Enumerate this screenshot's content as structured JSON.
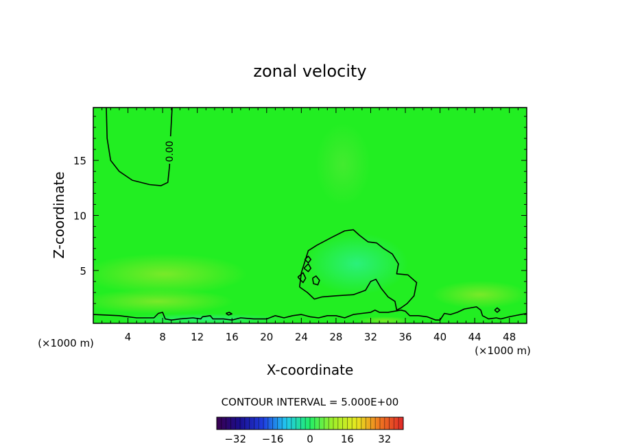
{
  "chart_data": {
    "type": "contour",
    "title": "zonal velocity",
    "xlabel": "X-coordinate",
    "ylabel": "Z-coordinate",
    "x_unit_left": "(×1000 m)",
    "x_unit_right": "(×1000 m)",
    "xlim": [
      0,
      50
    ],
    "ylim": [
      0.2,
      19.8
    ],
    "x_ticks": [
      4,
      8,
      12,
      16,
      20,
      24,
      28,
      32,
      36,
      40,
      44,
      48
    ],
    "y_ticks": [
      5,
      10,
      15
    ],
    "contour_label": "0.00",
    "contour_interval_text": "CONTOUR INTERVAL = 5.000E+00",
    "colorbar": {
      "range": [
        -40,
        40
      ],
      "ticks": [
        -32,
        -16,
        0,
        16,
        32
      ],
      "tick_labels": [
        "−32",
        "−16",
        "0",
        "16",
        "32"
      ]
    },
    "field_color": "#22ee22",
    "contours": [
      {
        "level": 0,
        "points": [
          [
            1.5,
            19.8
          ],
          [
            1.6,
            17
          ],
          [
            2,
            15
          ],
          [
            3,
            14
          ],
          [
            4.5,
            13.2
          ],
          [
            6.5,
            12.8
          ],
          [
            7.8,
            12.7
          ],
          [
            8.6,
            13
          ],
          [
            8.8,
            14.5
          ],
          [
            8.9,
            17
          ],
          [
            9.1,
            19.8
          ]
        ]
      },
      {
        "level": 0,
        "points": [
          [
            23.8,
            3.5
          ],
          [
            24,
            4.8
          ],
          [
            24.8,
            6.8
          ],
          [
            25.8,
            7.3
          ],
          [
            27.5,
            8
          ],
          [
            29,
            8.6
          ],
          [
            30,
            8.7
          ],
          [
            30.7,
            8.2
          ],
          [
            31.7,
            7.6
          ],
          [
            32.7,
            7.5
          ],
          [
            33.5,
            7
          ],
          [
            34.5,
            6.5
          ],
          [
            35.2,
            5.6
          ],
          [
            35,
            4.7
          ],
          [
            36.3,
            4.6
          ],
          [
            37.3,
            3.9
          ],
          [
            37,
            2.7
          ],
          [
            36.2,
            2
          ],
          [
            35.5,
            1.6
          ],
          [
            35,
            1.4
          ],
          [
            34.8,
            2.2
          ],
          [
            34,
            2.6
          ],
          [
            33.2,
            3.4
          ],
          [
            32.6,
            4.2
          ],
          [
            32,
            4
          ],
          [
            31.4,
            3.2
          ],
          [
            30,
            2.8
          ],
          [
            28,
            2.7
          ],
          [
            26.4,
            2.6
          ],
          [
            25.5,
            2.4
          ],
          [
            24.7,
            3
          ],
          [
            23.8,
            3.5
          ]
        ]
      },
      {
        "level": 0,
        "points": [
          [
            23.6,
            4.4
          ],
          [
            24.2,
            4.8
          ],
          [
            24.5,
            4.3
          ],
          [
            24.2,
            3.9
          ],
          [
            23.6,
            4.4
          ]
        ]
      },
      {
        "level": 0,
        "points": [
          [
            24.3,
            5.2
          ],
          [
            24.8,
            5.6
          ],
          [
            25.1,
            5.2
          ],
          [
            24.8,
            4.9
          ],
          [
            24.3,
            5.2
          ]
        ]
      },
      {
        "level": 0,
        "points": [
          [
            24.4,
            6
          ],
          [
            24.8,
            6.3
          ],
          [
            25.1,
            6
          ],
          [
            24.8,
            5.7
          ],
          [
            24.4,
            6
          ]
        ]
      },
      {
        "level": 0,
        "points": [
          [
            25.3,
            4.3
          ],
          [
            25.7,
            4.5
          ],
          [
            26.1,
            4.1
          ],
          [
            25.9,
            3.7
          ],
          [
            25.4,
            3.8
          ],
          [
            25.3,
            4.3
          ]
        ]
      },
      {
        "level": 0,
        "points": [
          [
            0,
            1.0
          ],
          [
            3,
            0.9
          ],
          [
            5,
            0.7
          ],
          [
            7,
            0.7
          ],
          [
            7.5,
            1.1
          ],
          [
            8,
            1.2
          ],
          [
            8.3,
            0.6
          ],
          [
            9,
            0.5
          ],
          [
            10,
            0.6
          ],
          [
            11.5,
            0.7
          ],
          [
            12.4,
            0.6
          ],
          [
            12.6,
            0.8
          ],
          [
            13.5,
            0.9
          ],
          [
            13.8,
            0.6
          ],
          [
            15,
            0.6
          ],
          [
            16,
            0.5
          ],
          [
            17,
            0.7
          ],
          [
            18.5,
            0.6
          ],
          [
            20,
            0.6
          ],
          [
            21,
            0.9
          ],
          [
            22,
            0.7
          ],
          [
            23,
            0.9
          ],
          [
            24,
            1
          ],
          [
            25,
            0.8
          ],
          [
            26,
            0.7
          ],
          [
            27,
            0.9
          ],
          [
            28,
            0.9
          ],
          [
            29,
            0.7
          ],
          [
            30,
            1
          ],
          [
            31,
            1.1
          ],
          [
            32,
            1.2
          ],
          [
            32.5,
            1.4
          ],
          [
            33,
            1.2
          ],
          [
            34,
            1.2
          ],
          [
            35.5,
            1.4
          ],
          [
            36,
            1.3
          ],
          [
            36.5,
            0.9
          ],
          [
            37.5,
            0.9
          ],
          [
            38.5,
            0.8
          ],
          [
            39.5,
            0.5
          ],
          [
            40,
            0.5
          ],
          [
            40.5,
            1.1
          ],
          [
            41.2,
            1.0
          ],
          [
            42,
            1.2
          ],
          [
            42.8,
            1.5
          ],
          [
            43.5,
            1.6
          ],
          [
            44.2,
            1.7
          ],
          [
            44.7,
            1.4
          ],
          [
            44.9,
            0.9
          ],
          [
            45.6,
            0.6
          ],
          [
            46.5,
            0.7
          ],
          [
            47,
            0.6
          ],
          [
            48,
            0.8
          ],
          [
            50,
            1.1
          ]
        ]
      },
      {
        "level": 0,
        "points": [
          [
            15.3,
            1.1
          ],
          [
            15.7,
            1.2
          ],
          [
            16,
            1.05
          ],
          [
            15.6,
            0.95
          ],
          [
            15.3,
            1.1
          ]
        ]
      },
      {
        "level": 0,
        "points": [
          [
            46.3,
            1.4
          ],
          [
            46.6,
            1.6
          ],
          [
            46.9,
            1.4
          ],
          [
            46.6,
            1.2
          ],
          [
            46.3,
            1.4
          ]
        ]
      }
    ]
  }
}
